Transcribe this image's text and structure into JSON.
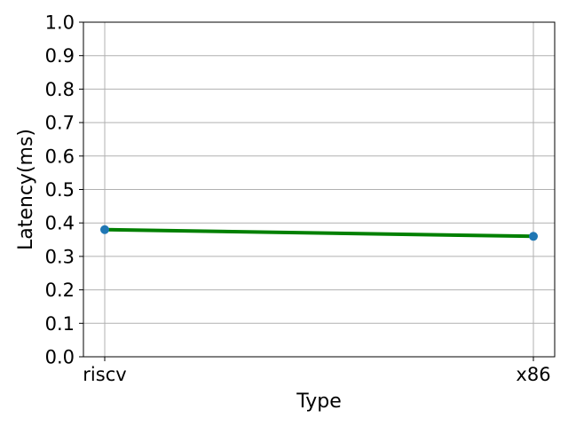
{
  "chart_data": {
    "type": "line",
    "categories": [
      "riscv",
      "x86"
    ],
    "series": [
      {
        "values": [
          0.38,
          0.36
        ],
        "line_color": "#008000",
        "marker_color": "#1f77b4"
      }
    ],
    "title": "",
    "xlabel": "Type",
    "ylabel": "Latency(ms)",
    "ylim": [
      0.0,
      1.0
    ],
    "yticks": [
      "0.0",
      "0.1",
      "0.2",
      "0.3",
      "0.4",
      "0.5",
      "0.6",
      "0.7",
      "0.8",
      "0.9",
      "1.0"
    ],
    "grid": true,
    "legend": "none"
  }
}
